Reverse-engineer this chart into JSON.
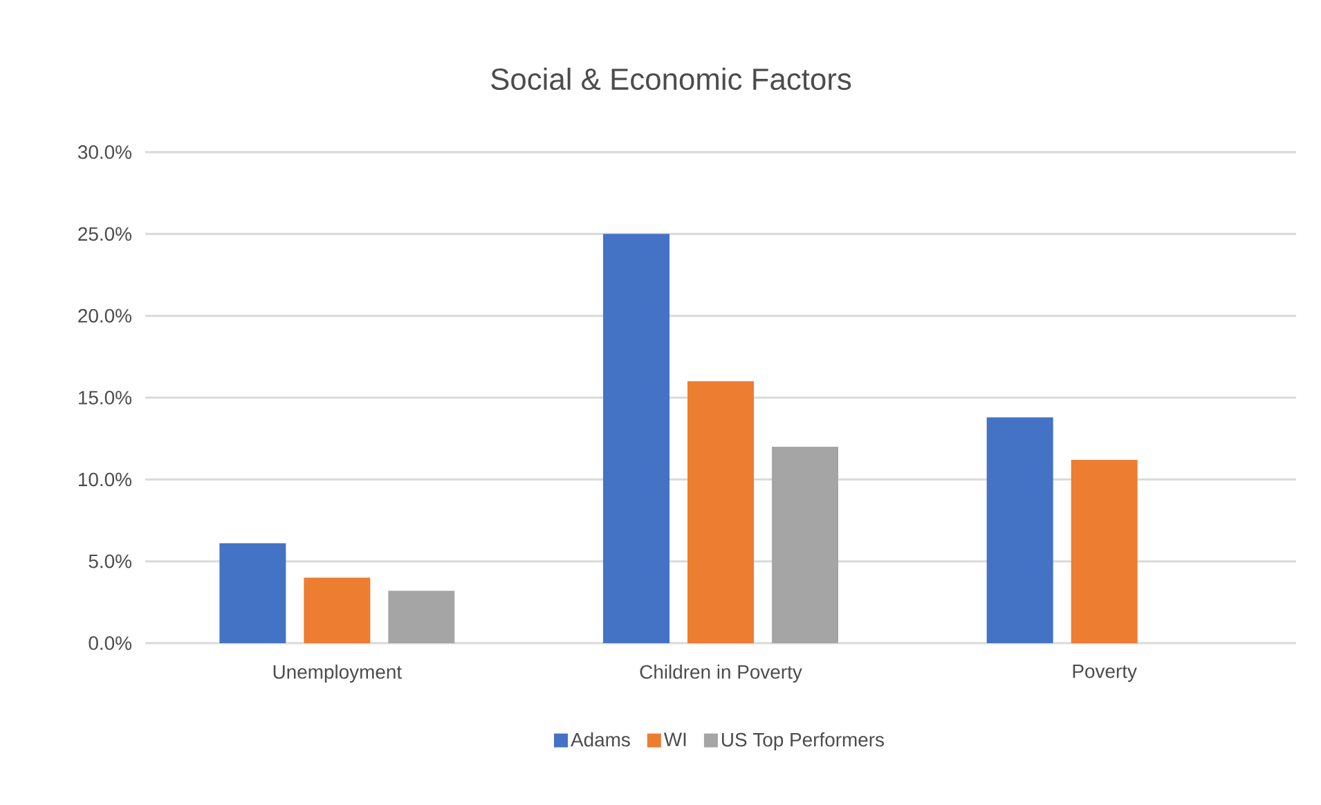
{
  "chart_data": {
    "type": "bar",
    "title": "Social & Economic Factors",
    "categories": [
      "Unemployment",
      "Children in Poverty",
      "Poverty"
    ],
    "series": [
      {
        "name": "Adams",
        "color": "#4472c4",
        "values": [
          6.1,
          25.0,
          13.8
        ]
      },
      {
        "name": "WI",
        "color": "#ed7d31",
        "values": [
          4.0,
          16.0,
          11.2
        ]
      },
      {
        "name": "US Top Performers",
        "color": "#a5a5a5",
        "values": [
          3.2,
          12.0,
          null
        ]
      }
    ],
    "ylim": [
      0,
      30
    ],
    "yticks": [
      {
        "value": 0,
        "label": "0.0%"
      },
      {
        "value": 5,
        "label": "5.0%"
      },
      {
        "value": 10,
        "label": "10.0%"
      },
      {
        "value": 15,
        "label": "15.0%"
      },
      {
        "value": 20,
        "label": "20.0%"
      },
      {
        "value": 25,
        "label": "25.0%"
      },
      {
        "value": 30,
        "label": "30.0%"
      }
    ],
    "grid": "y",
    "legend": "bottom"
  }
}
